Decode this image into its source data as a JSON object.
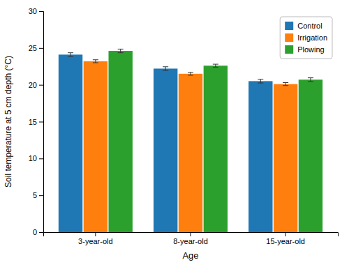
{
  "chart_data": {
    "type": "bar",
    "categories": [
      "3-year-old",
      "8-year-old",
      "15-year-old"
    ],
    "series": [
      {
        "name": "Control",
        "values": [
          24.1,
          22.2,
          20.5
        ],
        "errors": [
          0.25,
          0.25,
          0.25
        ]
      },
      {
        "name": "Irrigation",
        "values": [
          23.2,
          21.5,
          20.1
        ],
        "errors": [
          0.2,
          0.2,
          0.2
        ]
      },
      {
        "name": "Plowing",
        "values": [
          24.6,
          22.6,
          20.7
        ],
        "errors": [
          0.25,
          0.2,
          0.25
        ]
      }
    ],
    "xlabel": "Age",
    "ylabel": "Soil temperature at 5 cm depth (°C)",
    "ylim": [
      0,
      30
    ],
    "yticks": [
      0,
      5,
      10,
      15,
      20,
      25,
      30
    ],
    "legend": "upper right",
    "grid": false
  }
}
